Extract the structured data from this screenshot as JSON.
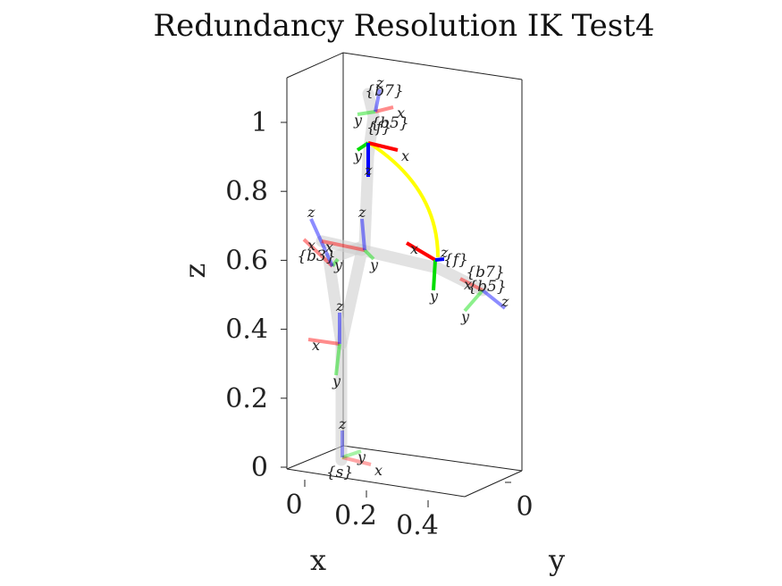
{
  "chart_data": {
    "type": "3d-line",
    "title": "Redundancy Resolution IK Test4",
    "xlabel": "x",
    "ylabel": "y",
    "zlabel": "z",
    "x_ticks": [
      "0",
      "0.2",
      "0.4"
    ],
    "y_ticks": [
      "0"
    ],
    "z_ticks": [
      "0",
      "0.2",
      "0.4",
      "0.6",
      "0.8",
      "1"
    ],
    "zlim": [
      0,
      1.1
    ],
    "frame_labels": [
      "{s}",
      "{b3}",
      "{b5}",
      "{b7}",
      "{f}"
    ],
    "axis_letters": [
      "x",
      "y",
      "z"
    ],
    "colors": {
      "x_axis": "#ff0000",
      "y_axis": "#00dd00",
      "z_axis": "#0000ff",
      "trajectory": "#ffff00",
      "links": "#d9d9d9",
      "box": "#222222"
    }
  }
}
